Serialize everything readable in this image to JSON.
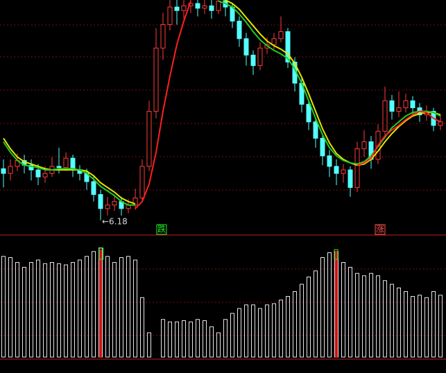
{
  "chart_data": {
    "type": "candlestick",
    "open": [
      6.62,
      6.58,
      6.64,
      6.69,
      6.65,
      6.61,
      6.55,
      6.58,
      6.64,
      6.63,
      6.71,
      6.61,
      6.58,
      6.51,
      6.4,
      6.28,
      6.31,
      6.34,
      6.28,
      6.31,
      6.37,
      6.64,
      7.11,
      7.65,
      7.85,
      8.0,
      7.97,
      8.01,
      8.03,
      7.99,
      8.01,
      7.97,
      8.05,
      8.0,
      7.88,
      7.73,
      7.59,
      7.5,
      7.65,
      7.68,
      7.73,
      7.79,
      7.53,
      7.35,
      7.17,
      7.02,
      6.88,
      6.73,
      6.64,
      6.58,
      6.61,
      6.46,
      6.79,
      6.85,
      6.7,
      6.94,
      7.2,
      7.11,
      7.14,
      7.2,
      7.14,
      7.08,
      7.11,
      6.99
    ],
    "high": [
      6.7,
      6.7,
      6.75,
      6.74,
      6.7,
      6.66,
      6.64,
      6.72,
      6.8,
      6.76,
      6.74,
      6.65,
      6.62,
      6.55,
      6.44,
      6.38,
      6.4,
      6.38,
      6.36,
      6.45,
      6.7,
      7.2,
      7.82,
      7.95,
      8.1,
      8.1,
      8.1,
      8.1,
      8.08,
      8.08,
      8.06,
      8.1,
      8.1,
      8.03,
      7.92,
      7.78,
      7.63,
      7.7,
      7.74,
      7.78,
      7.92,
      7.82,
      7.57,
      7.4,
      7.21,
      7.06,
      6.92,
      6.78,
      6.7,
      6.66,
      6.64,
      6.85,
      6.95,
      6.9,
      7.0,
      7.32,
      7.25,
      7.28,
      7.26,
      7.24,
      7.18,
      7.16,
      7.14,
      7.08
    ],
    "low": [
      6.46,
      6.52,
      6.6,
      6.58,
      6.52,
      6.48,
      6.5,
      6.55,
      6.58,
      6.6,
      6.55,
      6.52,
      6.44,
      6.34,
      6.18,
      6.22,
      6.26,
      6.22,
      6.24,
      6.27,
      6.34,
      6.6,
      7.05,
      7.55,
      7.8,
      7.85,
      7.9,
      7.95,
      7.92,
      7.94,
      7.9,
      7.94,
      7.92,
      7.82,
      7.66,
      7.5,
      7.42,
      7.46,
      7.6,
      7.64,
      7.7,
      7.48,
      7.28,
      7.1,
      6.95,
      6.8,
      6.65,
      6.55,
      6.48,
      6.5,
      6.38,
      6.42,
      6.72,
      6.62,
      6.66,
      6.9,
      7.04,
      7.06,
      7.1,
      7.08,
      7.02,
      7.03,
      6.94,
      6.95
    ],
    "close": [
      6.58,
      6.64,
      6.69,
      6.65,
      6.61,
      6.55,
      6.58,
      6.64,
      6.63,
      6.71,
      6.61,
      6.58,
      6.51,
      6.4,
      6.28,
      6.31,
      6.34,
      6.28,
      6.31,
      6.37,
      6.64,
      7.11,
      7.65,
      7.85,
      8.0,
      7.97,
      8.01,
      8.03,
      7.99,
      8.01,
      7.97,
      8.05,
      8.0,
      7.88,
      7.73,
      7.59,
      7.5,
      7.65,
      7.68,
      7.73,
      7.79,
      7.53,
      7.35,
      7.17,
      7.02,
      6.88,
      6.73,
      6.64,
      6.58,
      6.61,
      6.46,
      6.79,
      6.85,
      6.7,
      6.94,
      7.2,
      7.11,
      7.14,
      7.2,
      7.14,
      7.08,
      7.11,
      6.99,
      7.02
    ],
    "up_color": "#ff3c3c",
    "down_color": "#54ffff",
    "ylim": [
      6.06,
      8.06
    ],
    "lines": [
      {
        "color": "#e6e600",
        "values": [
          6.88,
          6.79,
          6.72,
          6.68,
          6.66,
          6.64,
          6.62,
          6.61,
          6.61,
          6.61,
          6.61,
          6.61,
          6.6,
          6.56,
          6.5,
          6.46,
          6.42,
          6.37,
          6.34,
          6.32,
          null,
          null,
          null,
          null,
          null,
          null,
          null,
          null,
          null,
          null,
          null,
          8.07,
          8.06,
          8.03,
          7.98,
          7.91,
          7.84,
          7.77,
          7.71,
          7.67,
          7.64,
          7.6,
          7.52,
          7.4,
          7.26,
          7.11,
          6.96,
          6.84,
          6.75,
          6.7,
          6.67,
          6.65,
          6.66,
          6.7,
          6.77,
          6.85,
          6.92,
          6.98,
          7.03,
          7.07,
          7.09,
          7.1,
          7.1,
          7.08
        ]
      },
      {
        "color": "#22cc22",
        "values": [
          6.85,
          6.76,
          6.69,
          6.65,
          6.64,
          6.63,
          6.61,
          6.61,
          6.62,
          6.62,
          6.62,
          6.61,
          6.58,
          6.53,
          6.47,
          6.43,
          6.39,
          6.34,
          6.31,
          6.31,
          null,
          null,
          null,
          null,
          null,
          null,
          null,
          null,
          null,
          null,
          null,
          8.05,
          8.03,
          8.0,
          7.94,
          7.87,
          7.79,
          7.72,
          7.67,
          7.63,
          7.6,
          7.56,
          7.47,
          7.35,
          7.2,
          7.05,
          6.91,
          6.8,
          6.73,
          6.69,
          6.67,
          6.66,
          6.68,
          6.73,
          6.81,
          6.89,
          6.97,
          7.02,
          7.07,
          7.1,
          7.11,
          7.11,
          7.1,
          7.07
        ]
      },
      {
        "color": "#ff2020",
        "values": [
          null,
          null,
          null,
          null,
          null,
          null,
          null,
          null,
          null,
          null,
          null,
          null,
          null,
          null,
          null,
          null,
          null,
          null,
          null,
          6.28,
          6.34,
          6.49,
          6.76,
          7.11,
          7.41,
          7.68,
          7.88,
          8.05,
          null,
          null,
          null,
          null,
          null,
          null,
          null,
          null,
          null,
          null,
          null,
          null,
          null,
          null,
          null,
          null,
          null,
          null,
          null,
          null,
          null,
          null,
          null,
          6.65,
          6.67,
          6.71,
          6.82,
          6.9,
          6.95,
          6.99,
          7.04,
          7.08,
          7.11,
          7.1,
          7.05,
          7.02
        ]
      }
    ],
    "volume": {
      "color": "#e8e8e8",
      "ylim": [
        0,
        100
      ],
      "values": [
        83,
        82,
        78,
        74,
        78,
        80,
        77,
        78,
        77,
        76,
        78,
        80,
        83,
        87,
        90,
        83,
        78,
        82,
        83,
        80,
        49,
        20,
        null,
        31,
        29,
        29,
        30,
        29,
        31,
        30,
        25,
        20,
        31,
        36,
        40,
        43,
        43,
        40,
        43,
        44,
        47,
        50,
        54,
        60,
        66,
        71,
        82,
        86,
        87,
        78,
        74,
        69,
        67,
        69,
        67,
        63,
        60,
        57,
        54,
        50,
        51,
        49,
        54,
        51
      ]
    },
    "annotations": [
      {
        "text": "←6.18",
        "color": "#d8d8d8"
      },
      {
        "text": "跌",
        "color": "#22ee22"
      },
      {
        "text": "涨",
        "color": "#ff5050"
      }
    ]
  }
}
